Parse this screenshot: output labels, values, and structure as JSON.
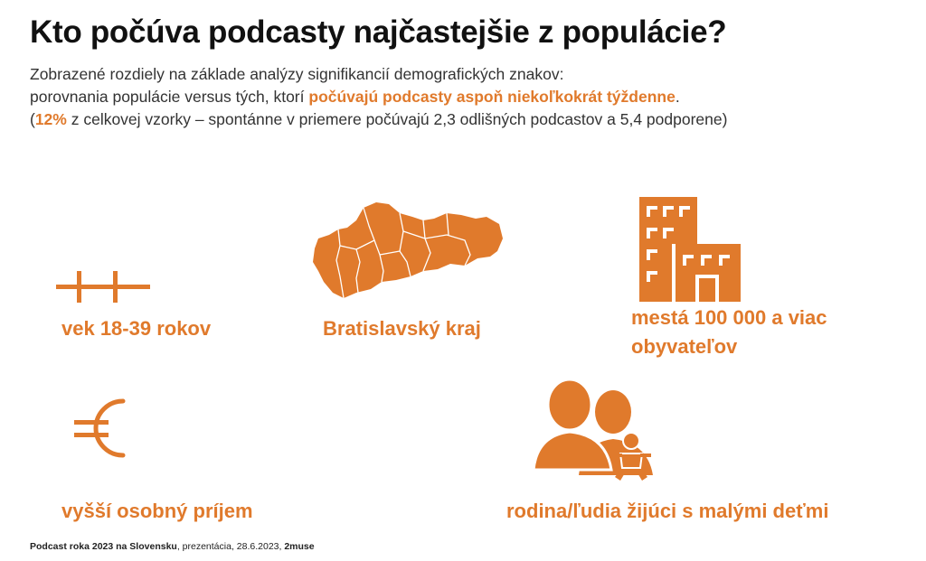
{
  "title": "Kto počúva podcasty najčastejšie z populácie?",
  "subtitle": {
    "line1": "Zobrazené rozdiely na základe analýzy signifikancií demografických znakov:",
    "line2_pre": "porovnania populácie versus tých, ktorí ",
    "line2_highlight": "počúvajú podcasty aspoň niekoľkokrát týždenne",
    "line2_post": ".",
    "line3_open": "(",
    "line3_highlight": "12%",
    "line3_rest": " z celkovej vzorky – spontánne v priemere počúvajú 2,3 odlišných podcastov a 5,4 podporene)"
  },
  "items": {
    "age": {
      "label": "vek 18-39 rokov",
      "icon": "age-range-icon"
    },
    "region": {
      "label": "Bratislavský kraj",
      "icon": "slovakia-map-icon"
    },
    "city": {
      "label_line1": "mestá 100 000 a viac",
      "label_line2": "obyvateľov",
      "icon": "buildings-icon"
    },
    "income": {
      "label": "vyšší osobný príjem",
      "icon": "euro-icon"
    },
    "family": {
      "label": "rodina/ľudia žijúci s malými deťmi",
      "icon": "family-icon"
    }
  },
  "footer": {
    "source": "Podcast roka 2023 na Slovensku",
    "details": ", prezentácia, 28.6.2023, ",
    "author": "2muse"
  },
  "colors": {
    "accent": "#e07a2c",
    "text": "#111111",
    "subtext": "#333333"
  }
}
